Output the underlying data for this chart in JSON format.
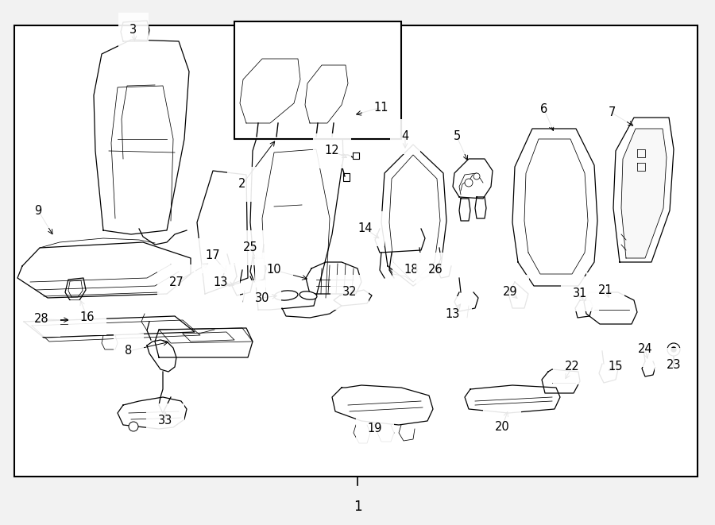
{
  "bg_color": "#f2f2f2",
  "diagram_bg": "#ffffff",
  "border_color": "#000000",
  "lw_border": 1.5,
  "lw_part": 0.9,
  "lw_inner": 0.55,
  "arrow_lw": 0.7,
  "label_fontsize": 10.5,
  "bottom_label": "1"
}
